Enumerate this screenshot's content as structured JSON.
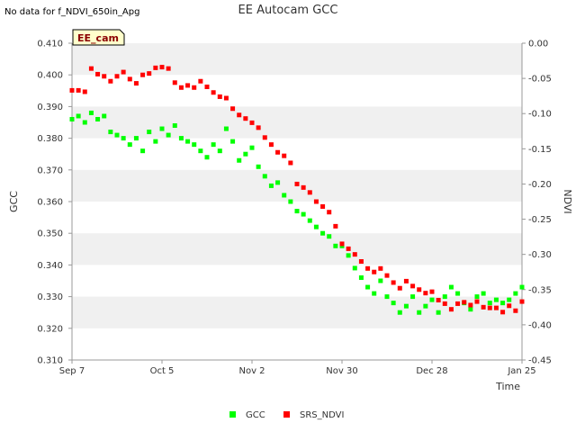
{
  "note": "No data for f_NDVI_650in_Apg",
  "chart_data": {
    "type": "scatter",
    "title": "EE Autocam GCC",
    "badge": "EE_cam",
    "xlabel": "Time",
    "ylabel": "GCC",
    "y2label": "NDVI",
    "x_ticks": [
      "Sep 7",
      "Oct 5",
      "Nov 2",
      "Nov 30",
      "Dec 28",
      "Jan 25"
    ],
    "x_range_days": [
      0,
      140
    ],
    "ylim": [
      0.31,
      0.41
    ],
    "y_ticks": [
      "0.310",
      "0.320",
      "0.330",
      "0.340",
      "0.350",
      "0.360",
      "0.370",
      "0.380",
      "0.390",
      "0.400",
      "0.410"
    ],
    "y2lim": [
      -0.45,
      0.0
    ],
    "y2_ticks": [
      "-0.45",
      "-0.40",
      "-0.35",
      "-0.30",
      "-0.25",
      "-0.20",
      "-0.15",
      "-0.10",
      "-0.05",
      "0.00"
    ],
    "grid": "horizontal bands",
    "legend_position": "bottom",
    "colors": {
      "gcc": "#00ff00",
      "ndvi": "#ff0000",
      "band": "#f0f0f0",
      "badge_bg": "#ffffcc",
      "badge_text": "#8b0000"
    },
    "series": [
      {
        "name": "GCC",
        "axis": "left",
        "x": [
          0,
          2,
          4,
          6,
          8,
          10,
          12,
          14,
          16,
          18,
          20,
          22,
          24,
          26,
          28,
          30,
          32,
          34,
          36,
          38,
          40,
          42,
          44,
          46,
          48,
          50,
          52,
          54,
          56,
          58,
          60,
          62,
          64,
          66,
          68,
          70,
          72,
          74,
          76,
          78,
          80,
          82,
          84,
          86,
          88,
          90,
          92,
          94,
          96,
          98,
          100,
          102,
          104,
          106,
          108,
          110,
          112,
          114,
          116,
          118,
          120,
          122,
          124,
          126,
          128,
          130,
          132,
          134,
          136,
          138,
          140
        ],
        "y": [
          0.386,
          0.387,
          0.385,
          0.388,
          0.386,
          0.387,
          0.382,
          0.381,
          0.38,
          0.378,
          0.38,
          0.376,
          0.382,
          0.379,
          0.383,
          0.381,
          0.384,
          0.38,
          0.379,
          0.378,
          0.376,
          0.374,
          0.378,
          0.376,
          0.383,
          0.379,
          0.373,
          0.375,
          0.377,
          0.371,
          0.368,
          0.365,
          0.366,
          0.362,
          0.36,
          0.357,
          0.356,
          0.354,
          0.352,
          0.35,
          0.349,
          0.346,
          0.346,
          0.343,
          0.339,
          0.336,
          0.333,
          0.331,
          0.335,
          0.33,
          0.328,
          0.325,
          0.327,
          0.33,
          0.325,
          0.327,
          0.329,
          0.325,
          0.33,
          0.333,
          0.331,
          0.328,
          0.326,
          0.33,
          0.331,
          0.328,
          0.329,
          0.328,
          0.329,
          0.331,
          0.333
        ]
      },
      {
        "name": "SRS_NDVI",
        "axis": "right",
        "x": [
          0,
          2,
          4,
          6,
          8,
          10,
          12,
          14,
          16,
          18,
          20,
          22,
          24,
          26,
          28,
          30,
          32,
          34,
          36,
          38,
          40,
          42,
          44,
          46,
          48,
          50,
          52,
          54,
          56,
          58,
          60,
          62,
          64,
          66,
          68,
          70,
          72,
          74,
          76,
          78,
          80,
          82,
          84,
          86,
          88,
          90,
          92,
          94,
          96,
          98,
          100,
          102,
          104,
          106,
          108,
          110,
          112,
          114,
          116,
          118,
          120,
          122,
          124,
          126,
          128,
          130,
          132,
          134,
          136,
          138,
          140
        ],
        "y": [
          -0.067,
          -0.067,
          -0.069,
          -0.036,
          -0.044,
          -0.047,
          -0.054,
          -0.047,
          -0.041,
          -0.051,
          -0.057,
          -0.045,
          -0.043,
          -0.035,
          -0.034,
          -0.036,
          -0.056,
          -0.063,
          -0.06,
          -0.063,
          -0.054,
          -0.062,
          -0.07,
          -0.076,
          -0.078,
          -0.093,
          -0.102,
          -0.107,
          -0.113,
          -0.12,
          -0.134,
          -0.144,
          -0.155,
          -0.16,
          -0.17,
          -0.2,
          -0.205,
          -0.212,
          -0.225,
          -0.232,
          -0.24,
          -0.26,
          -0.285,
          -0.292,
          -0.3,
          -0.31,
          -0.32,
          -0.325,
          -0.32,
          -0.33,
          -0.34,
          -0.348,
          -0.338,
          -0.345,
          -0.35,
          -0.355,
          -0.353,
          -0.365,
          -0.37,
          -0.378,
          -0.37,
          -0.368,
          -0.372,
          -0.367,
          -0.375,
          -0.376,
          -0.376,
          -0.382,
          -0.373,
          -0.38,
          -0.367
        ]
      }
    ],
    "legend": [
      {
        "label": "GCC",
        "color": "#00ff00"
      },
      {
        "label": "SRS_NDVI",
        "color": "#ff0000"
      }
    ]
  }
}
